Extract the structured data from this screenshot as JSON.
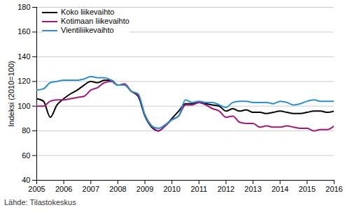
{
  "chart_data": {
    "type": "line",
    "y_label": "Indeksi (2010=100)",
    "caption": "Lähde: Tilastokeskus",
    "x": [
      2005.0,
      2005.25,
      2005.5,
      2005.75,
      2006.0,
      2006.25,
      2006.5,
      2006.75,
      2007.0,
      2007.25,
      2007.5,
      2007.75,
      2008.0,
      2008.25,
      2008.5,
      2008.75,
      2009.0,
      2009.25,
      2009.5,
      2009.75,
      2010.0,
      2010.25,
      2010.5,
      2010.75,
      2011.0,
      2011.25,
      2011.5,
      2011.75,
      2012.0,
      2012.25,
      2012.5,
      2012.75,
      2013.0,
      2013.25,
      2013.5,
      2013.75,
      2014.0,
      2014.25,
      2014.5,
      2014.75,
      2015.0,
      2015.25,
      2015.5,
      2015.75,
      2016.0
    ],
    "series": [
      {
        "name": "Koko liikevaihto",
        "color": "#000000",
        "values": [
          106,
          104,
          91,
          101,
          106,
          110,
          113,
          117,
          120,
          119,
          121,
          121,
          117,
          117,
          112,
          108,
          92,
          83,
          80,
          84,
          90,
          96,
          102,
          102,
          103,
          102,
          101,
          100,
          96,
          98,
          96,
          97,
          95,
          95,
          94,
          95,
          96,
          95,
          94,
          94,
          95,
          96,
          96,
          95,
          96
        ]
      },
      {
        "name": "Kotimaan liikevaihto",
        "color": "#a3167e",
        "values": [
          100,
          100,
          104,
          105,
          105,
          106,
          107,
          108,
          113,
          115,
          119,
          120,
          117,
          118,
          112,
          109,
          93,
          84,
          80,
          84,
          89,
          92,
          101,
          101,
          103,
          101,
          98,
          96,
          91,
          92,
          87,
          86,
          86,
          83,
          84,
          83,
          83,
          84,
          83,
          82,
          82,
          80,
          81,
          81,
          84
        ]
      },
      {
        "name": "Vientiliikevaihto",
        "color": "#2a8fcd",
        "values": [
          113,
          114,
          119,
          120,
          121,
          121,
          121,
          122,
          124,
          123,
          123,
          121,
          117,
          117,
          112,
          110,
          93,
          84,
          82,
          85,
          89,
          92,
          105,
          103,
          104,
          103,
          103,
          101,
          99,
          103,
          104,
          104,
          103,
          103,
          103,
          102,
          104,
          103,
          101,
          102,
          104,
          105,
          104,
          104,
          104
        ]
      }
    ],
    "xlim": [
      2005,
      2016
    ],
    "xticks": [
      2005,
      2006,
      2007,
      2008,
      2009,
      2010,
      2011,
      2012,
      2013,
      2014,
      2015,
      2016
    ],
    "ylim": [
      40,
      180
    ],
    "yticks": [
      40,
      60,
      80,
      100,
      120,
      140,
      160,
      180
    ],
    "grid": true,
    "legend": "top-left"
  }
}
